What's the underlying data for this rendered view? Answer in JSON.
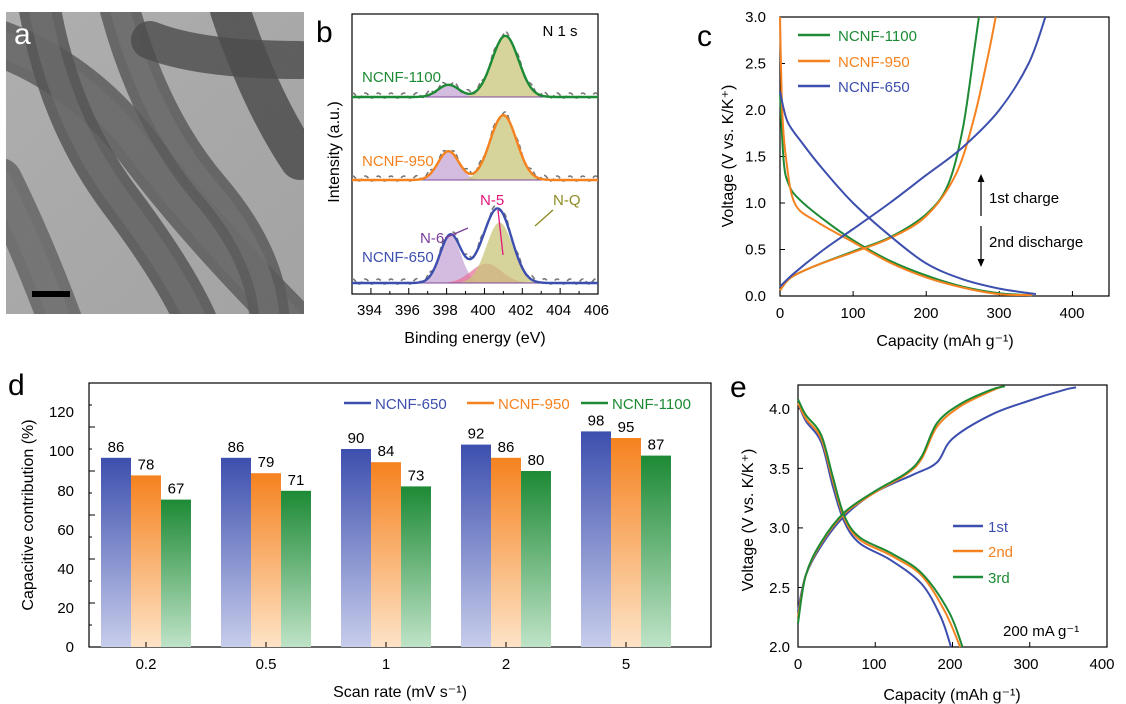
{
  "panels": {
    "a": {
      "letter": "a"
    },
    "b": {
      "letter": "b"
    },
    "c": {
      "letter": "c"
    },
    "d": {
      "letter": "d"
    },
    "e": {
      "letter": "e"
    }
  },
  "colors": {
    "ncnf650": "#3d4fae",
    "ncnf950": "#f5821f",
    "ncnf1100": "#1d8a35",
    "nq_fill": "#c9c67a",
    "n6_fill": "#c4a6d6",
    "n5_fill": "#e8739e",
    "n6_label": "#7a3d99",
    "n5_label": "#e0187a",
    "nq_label": "#8c8a22"
  },
  "chart_data": [
    {
      "panel": "b",
      "type": "line",
      "annotation": "N 1 s",
      "xlabel": "Binding energy (eV)",
      "ylabel": "Intensity (a.u.)",
      "xlim": [
        393,
        406
      ],
      "xticks": [
        "394",
        "396",
        "398",
        "400",
        "402",
        "404",
        "406"
      ],
      "peak_labels": [
        "N-6",
        "N-5",
        "N-Q"
      ],
      "series": [
        {
          "name": "NCNF-1100",
          "peaks": {
            "N-6": [
              398.1,
              0.17
            ],
            "N-5": [
              400.0,
              0.0
            ],
            "N-Q": [
              401.1,
              0.85
            ]
          }
        },
        {
          "name": "NCNF-950",
          "peaks": {
            "N-6": [
              398.1,
              0.4
            ],
            "N-5": [
              400.0,
              0.0
            ],
            "N-Q": [
              401.0,
              0.9
            ]
          }
        },
        {
          "name": "NCNF-650",
          "peaks": {
            "N-6": [
              398.2,
              0.66
            ],
            "N-5": [
              400.1,
              0.27
            ],
            "N-Q": [
              400.8,
              0.84
            ]
          }
        }
      ]
    },
    {
      "panel": "c",
      "type": "line",
      "xlabel": "Capacity (mAh g⁻¹)",
      "ylabel": "Voltage (V vs. K/K⁺)",
      "xlim": [
        0,
        450
      ],
      "ylim": [
        0,
        3.0
      ],
      "xticks": [
        "0",
        "100",
        "200",
        "300",
        "400"
      ],
      "yticks": [
        "0.0",
        "0.5",
        "1.0",
        "1.5",
        "2.0",
        "2.5",
        "3.0"
      ],
      "annotations": [
        "1st charge",
        "2nd discharge"
      ],
      "series": [
        {
          "name": "NCNF-1100",
          "charge": [
            [
              0,
              0.06
            ],
            [
              15,
              0.2
            ],
            [
              50,
              0.33
            ],
            [
              100,
              0.48
            ],
            [
              150,
              0.63
            ],
            [
              200,
              0.88
            ],
            [
              230,
              1.2
            ],
            [
              250,
              1.8
            ],
            [
              265,
              2.6
            ],
            [
              272,
              3.0
            ]
          ],
          "discharge": [
            [
              0,
              2.2
            ],
            [
              5,
              1.45
            ],
            [
              12,
              1.2
            ],
            [
              25,
              1.05
            ],
            [
              60,
              0.82
            ],
            [
              100,
              0.6
            ],
            [
              150,
              0.38
            ],
            [
              200,
              0.22
            ],
            [
              250,
              0.1
            ],
            [
              300,
              0.03
            ],
            [
              345,
              0.01
            ]
          ]
        },
        {
          "name": "NCNF-950",
          "charge": [
            [
              0,
              0.06
            ],
            [
              15,
              0.2
            ],
            [
              50,
              0.33
            ],
            [
              100,
              0.47
            ],
            [
              150,
              0.62
            ],
            [
              200,
              0.86
            ],
            [
              240,
              1.3
            ],
            [
              265,
              1.9
            ],
            [
              285,
              2.6
            ],
            [
              295,
              3.0
            ]
          ],
          "discharge": [
            [
              0,
              3.0
            ],
            [
              3,
              2.0
            ],
            [
              8,
              1.5
            ],
            [
              20,
              1.0
            ],
            [
              50,
              0.8
            ],
            [
              100,
              0.58
            ],
            [
              150,
              0.36
            ],
            [
              200,
              0.2
            ],
            [
              250,
              0.09
            ],
            [
              300,
              0.02
            ],
            [
              345,
              0.01
            ]
          ]
        },
        {
          "name": "NCNF-650",
          "charge": [
            [
              0,
              0.1
            ],
            [
              20,
              0.25
            ],
            [
              60,
              0.5
            ],
            [
              100,
              0.72
            ],
            [
              150,
              1.0
            ],
            [
              200,
              1.3
            ],
            [
              250,
              1.6
            ],
            [
              300,
              2.0
            ],
            [
              340,
              2.5
            ],
            [
              363,
              3.0
            ]
          ],
          "discharge": [
            [
              0,
              2.2
            ],
            [
              10,
              1.88
            ],
            [
              30,
              1.65
            ],
            [
              60,
              1.35
            ],
            [
              100,
              1.0
            ],
            [
              150,
              0.65
            ],
            [
              200,
              0.35
            ],
            [
              250,
              0.18
            ],
            [
              300,
              0.08
            ],
            [
              350,
              0.02
            ]
          ]
        }
      ]
    },
    {
      "panel": "d",
      "type": "bar",
      "xlabel": "Scan rate (mV s⁻¹)",
      "ylabel": "Capacitive contribution (%)",
      "ylim": [
        0,
        120
      ],
      "yticks": [
        "0",
        "20",
        "40",
        "60",
        "80",
        "100",
        "120"
      ],
      "legend_placement": "top-right",
      "categories": [
        "0.2",
        "0.5",
        "1",
        "2",
        "5"
      ],
      "series": [
        {
          "name": "NCNF-650",
          "values": [
            86,
            86,
            90,
            92,
            98
          ]
        },
        {
          "name": "NCNF-950",
          "values": [
            78,
            79,
            84,
            86,
            95
          ]
        },
        {
          "name": "NCNF-1100",
          "values": [
            67,
            71,
            73,
            80,
            87
          ]
        }
      ]
    },
    {
      "panel": "e",
      "type": "line",
      "xlabel": "Capacity (mAh g⁻¹)",
      "ylabel": "Voltage (V vs. K/K⁺)",
      "xlim": [
        0,
        400
      ],
      "ylim": [
        2.0,
        4.2
      ],
      "xticks": [
        "0",
        "100",
        "200",
        "300",
        "400"
      ],
      "yticks": [
        "2.0",
        "2.5",
        "3.0",
        "3.5",
        "4.0"
      ],
      "annotation": "200 mA g⁻¹",
      "series": [
        {
          "name": "1st",
          "charge": [
            [
              0,
              2.3
            ],
            [
              10,
              2.6
            ],
            [
              30,
              2.85
            ],
            [
              60,
              3.1
            ],
            [
              100,
              3.3
            ],
            [
              150,
              3.45
            ],
            [
              180,
              3.55
            ],
            [
              200,
              3.75
            ],
            [
              250,
              3.95
            ],
            [
              300,
              4.07
            ],
            [
              345,
              4.16
            ],
            [
              360,
              4.18
            ]
          ],
          "discharge": [
            [
              0,
              4.05
            ],
            [
              10,
              3.9
            ],
            [
              30,
              3.72
            ],
            [
              45,
              3.35
            ],
            [
              60,
              3.05
            ],
            [
              80,
              2.87
            ],
            [
              120,
              2.73
            ],
            [
              160,
              2.53
            ],
            [
              185,
              2.25
            ],
            [
              198,
              2.0
            ]
          ]
        },
        {
          "name": "2nd",
          "charge": [
            [
              0,
              2.25
            ],
            [
              10,
              2.6
            ],
            [
              30,
              2.87
            ],
            [
              60,
              3.12
            ],
            [
              100,
              3.3
            ],
            [
              140,
              3.45
            ],
            [
              160,
              3.58
            ],
            [
              180,
              3.85
            ],
            [
              210,
              4.02
            ],
            [
              250,
              4.15
            ],
            [
              265,
              4.19
            ]
          ],
          "discharge": [
            [
              0,
              4.05
            ],
            [
              10,
              3.92
            ],
            [
              30,
              3.75
            ],
            [
              45,
              3.4
            ],
            [
              60,
              3.08
            ],
            [
              80,
              2.9
            ],
            [
              120,
              2.77
            ],
            [
              160,
              2.6
            ],
            [
              190,
              2.3
            ],
            [
              210,
              2.0
            ]
          ]
        },
        {
          "name": "3rd",
          "charge": [
            [
              0,
              2.2
            ],
            [
              10,
              2.6
            ],
            [
              30,
              2.88
            ],
            [
              60,
              3.13
            ],
            [
              100,
              3.31
            ],
            [
              140,
              3.46
            ],
            [
              160,
              3.6
            ],
            [
              180,
              3.88
            ],
            [
              210,
              4.04
            ],
            [
              250,
              4.16
            ],
            [
              268,
              4.19
            ]
          ],
          "discharge": [
            [
              0,
              4.08
            ],
            [
              10,
              3.95
            ],
            [
              30,
              3.78
            ],
            [
              45,
              3.43
            ],
            [
              60,
              3.1
            ],
            [
              80,
              2.92
            ],
            [
              120,
              2.79
            ],
            [
              160,
              2.62
            ],
            [
              195,
              2.3
            ],
            [
              213,
              2.0
            ]
          ]
        }
      ]
    }
  ]
}
